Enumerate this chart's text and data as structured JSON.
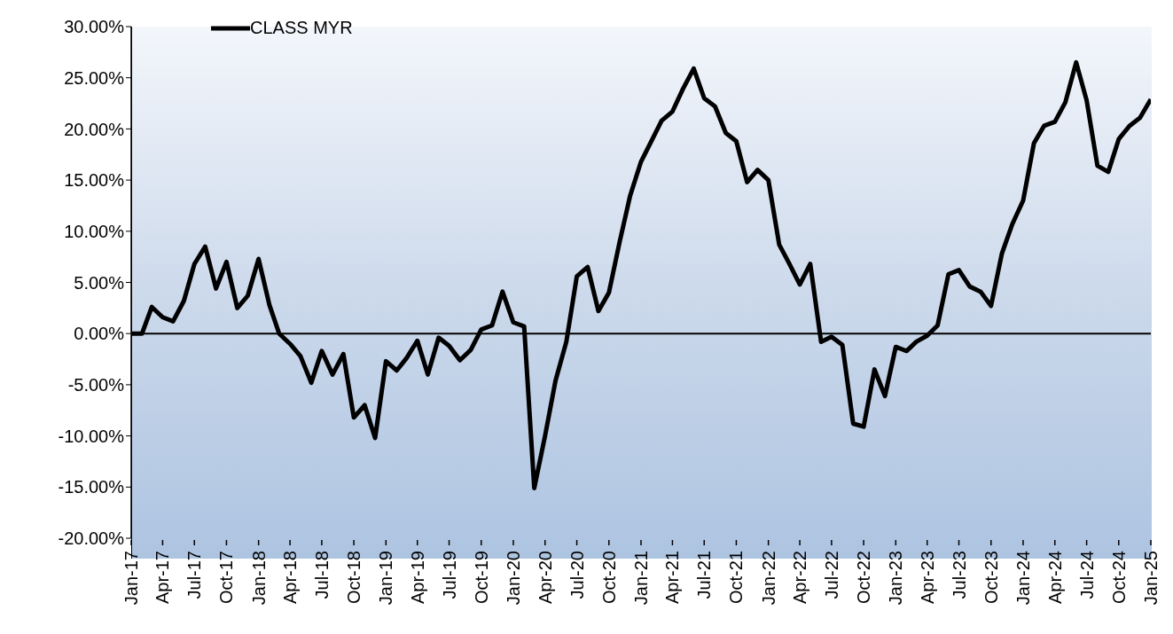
{
  "chart_data": {
    "type": "line",
    "x": [
      "2017-01",
      "2017-02",
      "2017-03",
      "2017-04",
      "2017-05",
      "2017-06",
      "2017-07",
      "2017-08",
      "2017-09",
      "2017-10",
      "2017-11",
      "2017-12",
      "2018-01",
      "2018-02",
      "2018-03",
      "2018-04",
      "2018-05",
      "2018-06",
      "2018-07",
      "2018-08",
      "2018-09",
      "2018-10",
      "2018-11",
      "2018-12",
      "2019-01",
      "2019-02",
      "2019-03",
      "2019-04",
      "2019-05",
      "2019-06",
      "2019-07",
      "2019-08",
      "2019-09",
      "2019-10",
      "2019-11",
      "2019-12",
      "2020-01",
      "2020-02",
      "2020-03",
      "2020-04",
      "2020-05",
      "2020-06",
      "2020-07",
      "2020-08",
      "2020-09",
      "2020-10",
      "2020-11",
      "2020-12",
      "2021-01",
      "2021-02",
      "2021-03",
      "2021-04",
      "2021-05",
      "2021-06",
      "2021-07",
      "2021-08",
      "2021-09",
      "2021-10",
      "2021-11",
      "2021-12",
      "2022-01",
      "2022-02",
      "2022-03",
      "2022-04",
      "2022-05",
      "2022-06",
      "2022-07",
      "2022-08",
      "2022-09",
      "2022-10",
      "2022-11",
      "2022-12",
      "2023-01",
      "2023-02",
      "2023-03",
      "2023-04",
      "2023-05",
      "2023-06",
      "2023-07",
      "2023-08",
      "2023-09",
      "2023-10",
      "2023-11",
      "2023-12",
      "2024-01",
      "2024-02",
      "2024-03",
      "2024-04",
      "2024-05",
      "2024-06",
      "2024-07",
      "2024-08",
      "2024-09",
      "2024-10",
      "2024-11",
      "2024-12",
      "2025-01"
    ],
    "series": [
      {
        "name": "CLASS MYR",
        "color": "#000000",
        "values": [
          0,
          0,
          2.6,
          1.6,
          1.2,
          3.2,
          6.8,
          8.5,
          4.4,
          7.0,
          2.5,
          3.7,
          7.3,
          2.8,
          0,
          -1.0,
          -2.2,
          -4.8,
          -1.7,
          -4.0,
          -2.0,
          -8.2,
          -7.0,
          -10.2,
          -2.7,
          -3.6,
          -2.4,
          -0.7,
          -4.0,
          -0.4,
          -1.2,
          -2.6,
          -1.6,
          0.4,
          0.8,
          4.1,
          1.1,
          0.7,
          -15.1,
          -10.0,
          -4.6,
          -0.8,
          5.6,
          6.5,
          2.2,
          4.0,
          9.0,
          13.5,
          16.8,
          18.9,
          20.8,
          21.7,
          23.9,
          25.9,
          23.0,
          22.2,
          19.6,
          18.8,
          14.8,
          16.0,
          15.0,
          8.7,
          6.9,
          4.8,
          6.8,
          -0.8,
          -0.3,
          -1.1,
          -8.8,
          -9.1,
          -3.5,
          -6.1,
          -1.3,
          -1.7,
          -0.8,
          -0.2,
          0.8,
          5.8,
          6.2,
          4.6,
          4.1,
          2.7,
          7.8,
          10.7,
          13.0,
          18.6,
          20.3,
          20.7,
          22.6,
          26.5,
          22.8,
          16.4,
          15.8,
          19.0,
          20.3,
          21.1,
          22.9
        ]
      }
    ],
    "xlim": [
      "2017-01",
      "2025-01"
    ],
    "xticks": [
      {
        "value": "2017-01",
        "label": "Jan-17"
      },
      {
        "value": "2017-04",
        "label": "Apr-17"
      },
      {
        "value": "2017-07",
        "label": "Jul-17"
      },
      {
        "value": "2017-10",
        "label": "Oct-17"
      },
      {
        "value": "2018-01",
        "label": "Jan-18"
      },
      {
        "value": "2018-04",
        "label": "Apr-18"
      },
      {
        "value": "2018-07",
        "label": "Jul-18"
      },
      {
        "value": "2018-10",
        "label": "Oct-18"
      },
      {
        "value": "2019-01",
        "label": "Jan-19"
      },
      {
        "value": "2019-04",
        "label": "Apr-19"
      },
      {
        "value": "2019-07",
        "label": "Jul-19"
      },
      {
        "value": "2019-10",
        "label": "Oct-19"
      },
      {
        "value": "2020-01",
        "label": "Jan-20"
      },
      {
        "value": "2020-04",
        "label": "Apr-20"
      },
      {
        "value": "2020-07",
        "label": "Jul-20"
      },
      {
        "value": "2020-10",
        "label": "Oct-20"
      },
      {
        "value": "2021-01",
        "label": "Jan-21"
      },
      {
        "value": "2021-04",
        "label": "Apr-21"
      },
      {
        "value": "2021-07",
        "label": "Jul-21"
      },
      {
        "value": "2021-10",
        "label": "Oct-21"
      },
      {
        "value": "2022-01",
        "label": "Jan-22"
      },
      {
        "value": "2022-04",
        "label": "Apr-22"
      },
      {
        "value": "2022-07",
        "label": "Jul-22"
      },
      {
        "value": "2022-10",
        "label": "Oct-22"
      },
      {
        "value": "2023-01",
        "label": "Jan-23"
      },
      {
        "value": "2023-04",
        "label": "Apr-23"
      },
      {
        "value": "2023-07",
        "label": "Jul-23"
      },
      {
        "value": "2023-10",
        "label": "Oct-23"
      },
      {
        "value": "2024-01",
        "label": "Jan-24"
      },
      {
        "value": "2024-04",
        "label": "Apr-24"
      },
      {
        "value": "2024-07",
        "label": "Jul-24"
      },
      {
        "value": "2024-10",
        "label": "Oct-24"
      },
      {
        "value": "2025-01",
        "label": "Jan-25"
      }
    ],
    "ylim": [
      -20,
      30
    ],
    "yticks": [
      {
        "value": -20,
        "label": "-20.00%"
      },
      {
        "value": -15,
        "label": "-15.00%"
      },
      {
        "value": -10,
        "label": "-10.00%"
      },
      {
        "value": -5,
        "label": "-5.00%"
      },
      {
        "value": 0,
        "label": "0.00%"
      },
      {
        "value": 5,
        "label": "5.00%"
      },
      {
        "value": 10,
        "label": "10.00%"
      },
      {
        "value": 15,
        "label": "15.00%"
      },
      {
        "value": 20,
        "label": "20.00%"
      },
      {
        "value": 25,
        "label": "25.00%"
      },
      {
        "value": 30,
        "label": "30.00%"
      }
    ],
    "legend": "top left",
    "marker": "none",
    "line_style": "solid"
  }
}
